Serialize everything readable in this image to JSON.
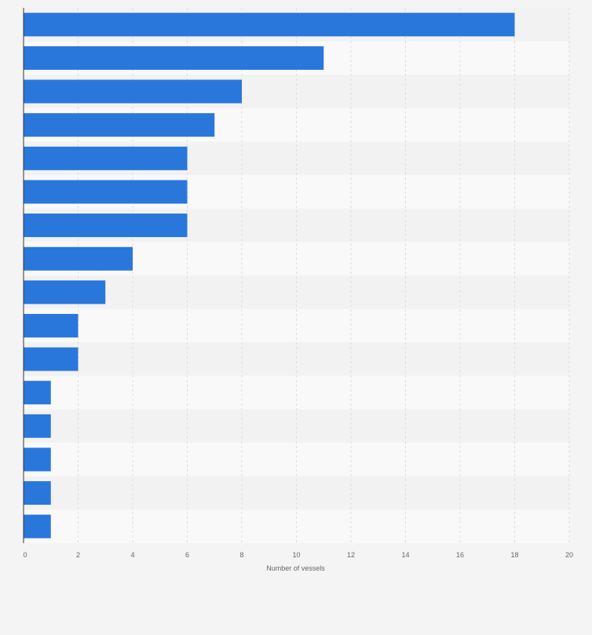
{
  "chart_data": {
    "type": "bar",
    "orientation": "horizontal",
    "categories": [
      "",
      "",
      "",
      "",
      "",
      "",
      "",
      "",
      "",
      "",
      "",
      "",
      "",
      "",
      "",
      ""
    ],
    "values": [
      18,
      11,
      8,
      7,
      6,
      6,
      6,
      4,
      3,
      2,
      2,
      1,
      1,
      1,
      1,
      1
    ],
    "xlabel": "Number of vessels",
    "ylabel": "",
    "xlim": [
      0,
      20
    ],
    "xticks": [
      "0",
      "2",
      "4",
      "6",
      "8",
      "10",
      "12",
      "14",
      "16",
      "18",
      "20"
    ],
    "grid": true,
    "colors": {
      "bar": "#2a77dc",
      "background": "#f4f4f4",
      "band_light": "#f9f9f9",
      "band_dark": "#f2f2f2",
      "grid": "#dddddd",
      "axis": "#333333",
      "text": "#666666"
    }
  }
}
